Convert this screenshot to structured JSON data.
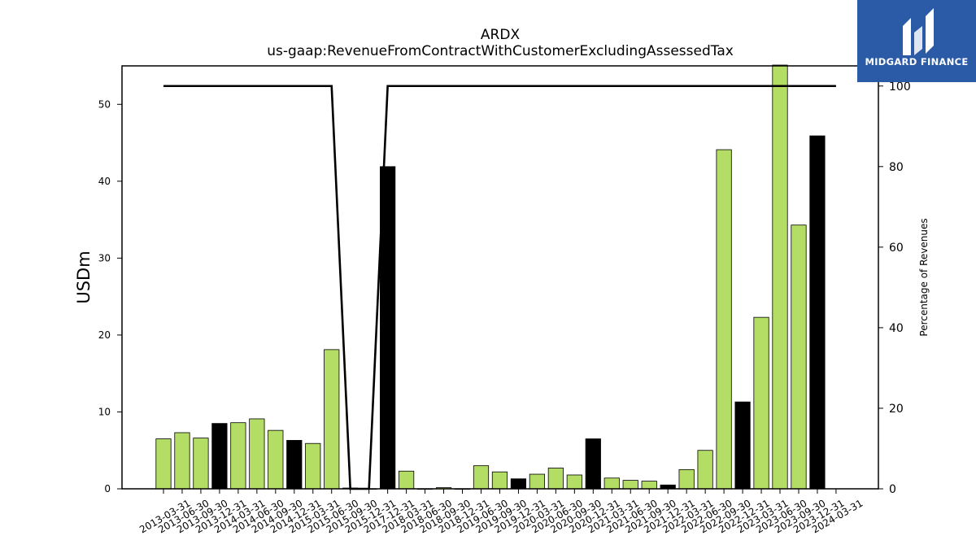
{
  "chart_data": {
    "type": "bar",
    "title": "ARDX",
    "subtitle": "us-gaap:RevenueFromContractWithCustomerExcludingAssessedTax",
    "ylabel": "USDm",
    "y2label": "Percentage of Revenues",
    "ylim": [
      0,
      55
    ],
    "y2lim": [
      0,
      105
    ],
    "yticks": [
      0,
      10,
      20,
      30,
      40,
      50
    ],
    "y2ticks": [
      0,
      20,
      40,
      60,
      80,
      100
    ],
    "categories": [
      "2013-03-31",
      "2013-06-30",
      "2013-09-30",
      "2013-12-31",
      "2014-03-31",
      "2014-06-30",
      "2014-09-30",
      "2014-12-31",
      "2015-03-31",
      "2015-06-30",
      "2015-09-30",
      "2015-12-31",
      "2017-12-31",
      "2018-03-31",
      "2018-06-30",
      "2018-09-30",
      "2018-12-31",
      "2019-06-30",
      "2019-09-30",
      "2019-12-31",
      "2020-03-31",
      "2020-06-30",
      "2020-09-30",
      "2020-12-31",
      "2021-03-31",
      "2021-06-30",
      "2021-09-30",
      "2021-12-31",
      "2022-03-31",
      "2022-06-30",
      "2022-09-30",
      "2022-12-31",
      "2023-03-31",
      "2023-06-30",
      "2023-09-30",
      "2023-12-31",
      "2024-03-31"
    ],
    "values": [
      6.5,
      7.3,
      6.6,
      8.5,
      8.6,
      9.1,
      7.6,
      6.3,
      5.9,
      18.1,
      0.1,
      0.0,
      41.9,
      2.3,
      0.0,
      0.15,
      0.0,
      3.0,
      2.2,
      1.3,
      1.9,
      2.7,
      1.8,
      6.5,
      1.4,
      1.1,
      1.0,
      0.5,
      2.5,
      5.0,
      44.1,
      11.3,
      22.3,
      55.5,
      34.3,
      45.9,
      null
    ],
    "quarter_end": [
      false,
      false,
      false,
      true,
      false,
      false,
      false,
      true,
      false,
      false,
      false,
      true,
      true,
      false,
      false,
      false,
      true,
      false,
      false,
      true,
      false,
      false,
      false,
      true,
      false,
      false,
      false,
      true,
      false,
      false,
      false,
      true,
      false,
      false,
      false,
      true,
      false
    ],
    "percentage": [
      100,
      100,
      100,
      100,
      100,
      100,
      100,
      100,
      100,
      100,
      0,
      0,
      100,
      100,
      100,
      100,
      100,
      100,
      100,
      100,
      100,
      100,
      100,
      100,
      100,
      100,
      100,
      100,
      100,
      100,
      100,
      100,
      100,
      100,
      100,
      100,
      100
    ],
    "colors": {
      "bar": "#b3dd64",
      "bar_year_end": "#000000",
      "line": "#000000"
    },
    "grid": false
  },
  "logo": {
    "brand": "MIDGARD FINANCE",
    "background": "#2b5aa6"
  }
}
